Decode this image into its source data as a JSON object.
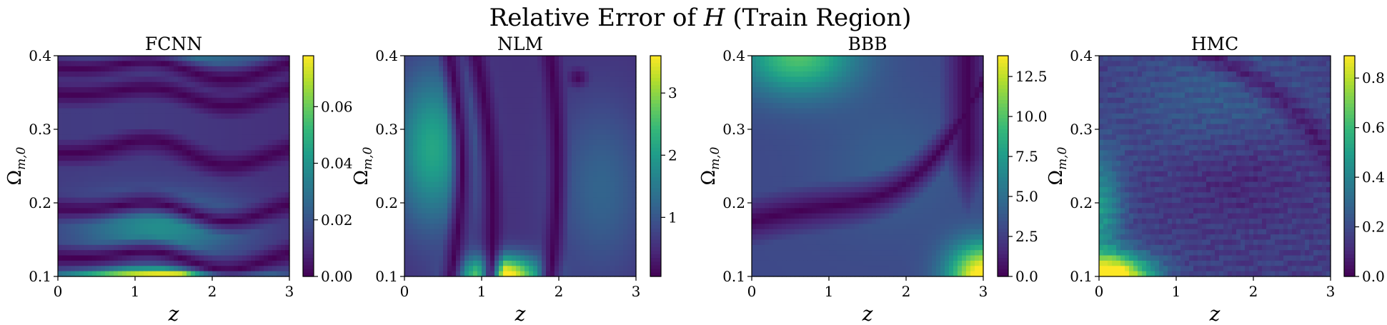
{
  "figure": {
    "suptitle_prefix": "Relative Error of ",
    "suptitle_var": "H",
    "suptitle_suffix": " (Train Region)"
  },
  "chart_data": [
    {
      "type": "heatmap",
      "title": "FCNN",
      "xlabel": "z",
      "ylabel": "Ω",
      "ylabel_sub": "m,0",
      "xlim": [
        0,
        3
      ],
      "ylim": [
        0.1,
        0.4
      ],
      "x_ticks": [
        "0",
        "1",
        "2",
        "3"
      ],
      "y_ticks": [
        "0.1",
        "0.2",
        "0.3",
        "0.4"
      ],
      "colormap": "viridis",
      "colorbar_range": [
        0,
        0.078
      ],
      "colorbar_ticks": [
        "0.00",
        "0.02",
        "0.04",
        "0.06"
      ],
      "colorbar_tick_values": [
        0,
        0.02,
        0.04,
        0.06
      ]
    },
    {
      "type": "heatmap",
      "title": "NLM",
      "xlabel": "z",
      "ylabel": "Ω",
      "ylabel_sub": "m,0",
      "xlim": [
        0,
        3
      ],
      "ylim": [
        0.1,
        0.4
      ],
      "x_ticks": [
        "0",
        "1",
        "2",
        "3"
      ],
      "y_ticks": [
        "0.1",
        "0.2",
        "0.3",
        "0.4"
      ],
      "colormap": "viridis",
      "colorbar_range": [
        0.05,
        3.6
      ],
      "colorbar_ticks": [
        "1",
        "2",
        "3"
      ],
      "colorbar_tick_values": [
        1,
        2,
        3
      ]
    },
    {
      "type": "heatmap",
      "title": "BBB",
      "xlabel": "z",
      "ylabel": "Ω",
      "ylabel_sub": "m,0",
      "xlim": [
        0,
        3
      ],
      "ylim": [
        0.1,
        0.4
      ],
      "x_ticks": [
        "0",
        "1",
        "2",
        "3"
      ],
      "y_ticks": [
        "0.1",
        "0.2",
        "0.3",
        "0.4"
      ],
      "colormap": "viridis",
      "colorbar_range": [
        0,
        13.8
      ],
      "colorbar_ticks": [
        "0.0",
        "2.5",
        "5.0",
        "7.5",
        "10.0",
        "12.5"
      ],
      "colorbar_tick_values": [
        0,
        2.5,
        5,
        7.5,
        10,
        12.5
      ]
    },
    {
      "type": "heatmap",
      "title": "HMC",
      "xlabel": "z",
      "ylabel": "Ω",
      "ylabel_sub": "m,0",
      "xlim": [
        0,
        3
      ],
      "ylim": [
        0.1,
        0.4
      ],
      "x_ticks": [
        "0",
        "1",
        "2",
        "3"
      ],
      "y_ticks": [
        "0.1",
        "0.2",
        "0.3",
        "0.4"
      ],
      "colormap": "viridis",
      "colorbar_range": [
        0,
        0.89
      ],
      "colorbar_ticks": [
        "0.0",
        "0.2",
        "0.4",
        "0.6",
        "0.8"
      ],
      "colorbar_tick_values": [
        0,
        0.2,
        0.4,
        0.6,
        0.8
      ]
    }
  ]
}
